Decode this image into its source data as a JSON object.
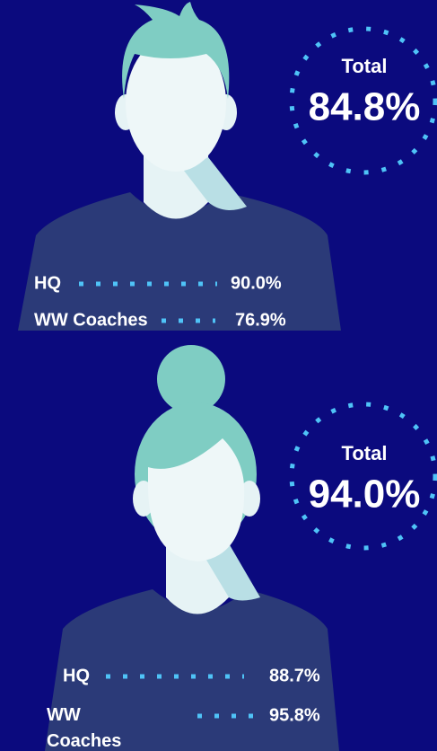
{
  "figures": [
    {
      "total_label": "Total",
      "total": "84.8%",
      "rows": [
        {
          "label": "HQ",
          "value": "90.0%"
        },
        {
          "label": "WW Coaches",
          "value": "76.9%"
        }
      ]
    },
    {
      "total_label": "Total",
      "total": "94.0%",
      "rows": [
        {
          "label": "HQ",
          "value": "88.7%"
        },
        {
          "label": "WW Coaches",
          "value": "95.8%"
        }
      ]
    }
  ]
}
